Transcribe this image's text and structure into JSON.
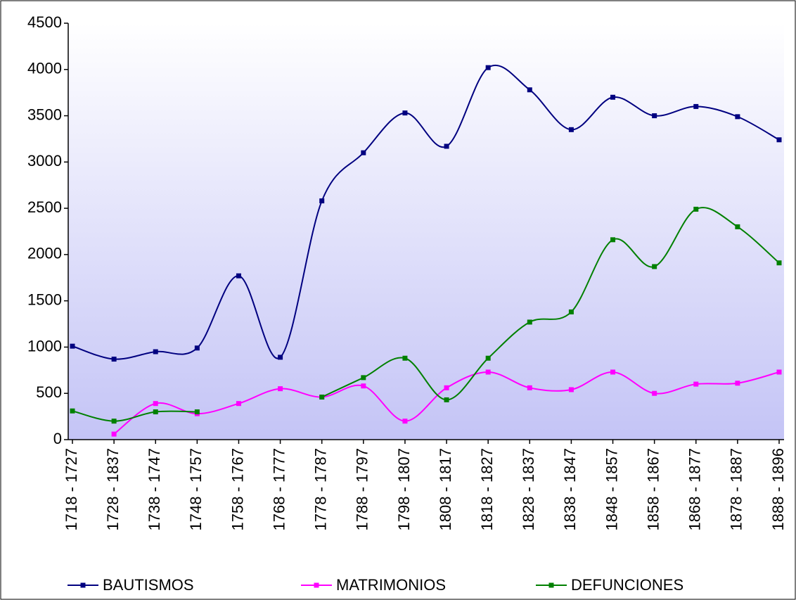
{
  "chart_data": {
    "type": "line",
    "smooth": true,
    "legend": "bottom",
    "categories": [
      "1718 - 1727",
      "1728 - 1837",
      "1738 - 1747",
      "1748 - 1757",
      "1758 - 1767",
      "1768 - 1777",
      "1778 - 1787",
      "1788 - 1797",
      "1798 - 1807",
      "1808 - 1817",
      "1818 - 1827",
      "1828 - 1837",
      "1838 - 1847",
      "1848 - 1857",
      "1858 - 1867",
      "1868 - 1877",
      "1878 - 1887",
      "1888 - 1896"
    ],
    "series": [
      {
        "name": "BAUTISMOS",
        "color": "#000080",
        "values": [
          1010,
          870,
          950,
          990,
          1770,
          890,
          2580,
          3100,
          3530,
          3170,
          4020,
          3780,
          3350,
          3700,
          3500,
          3600,
          3490,
          3240
        ]
      },
      {
        "name": "MATRIMONIOS",
        "color": "#ff00ff",
        "values": [
          null,
          60,
          390,
          280,
          390,
          550,
          460,
          580,
          200,
          560,
          730,
          560,
          540,
          730,
          500,
          600,
          610,
          730
        ]
      },
      {
        "name": "DEFUNCIONES",
        "color": "#008000",
        "values": [
          310,
          200,
          300,
          300,
          null,
          null,
          460,
          670,
          880,
          430,
          880,
          1270,
          1380,
          2160,
          1870,
          2490,
          2300,
          1910
        ]
      }
    ],
    "ylim": [
      0,
      4500
    ],
    "yticks": [
      0,
      500,
      1000,
      1500,
      2000,
      2500,
      3000,
      3500,
      4000,
      4500
    ]
  }
}
